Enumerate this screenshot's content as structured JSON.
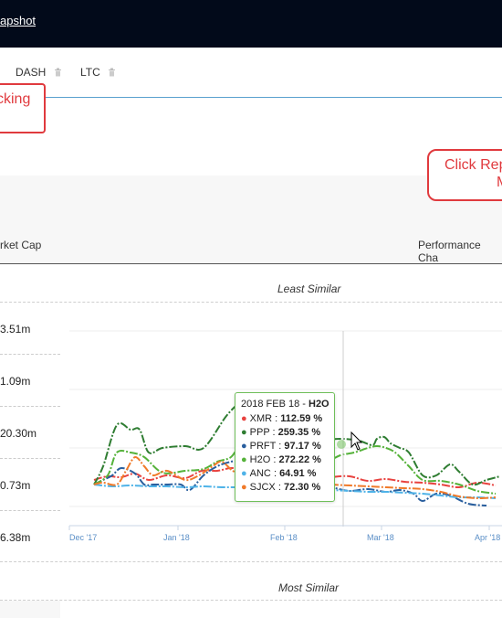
{
  "header": {
    "title": "apshot"
  },
  "tabs": [
    {
      "label": "DASH"
    },
    {
      "label": "LTC"
    }
  ],
  "callouts": {
    "left_text": "cking",
    "right_line1": "Click Rep",
    "right_line2": "M"
  },
  "table": {
    "col_market_cap": "rket Cap",
    "col_performance": "Performance Cha",
    "least_caption": "Least Similar",
    "most_caption": "Most Similar",
    "market_caps": [
      "3.51m",
      "1.09m",
      "20.30m",
      "0.73m",
      "6.38m"
    ]
  },
  "tooltip": {
    "date": "2018 FEB 18",
    "separator": " - ",
    "focus": "H2O",
    "rows": [
      {
        "name": "XMR",
        "value": "112.59 %",
        "color": "#e8423f"
      },
      {
        "name": "PPP",
        "value": "259.35 %",
        "color": "#2f7d32"
      },
      {
        "name": "PRFT",
        "value": "97.17 %",
        "color": "#2a5f9e"
      },
      {
        "name": "H2O",
        "value": "272.22 %",
        "color": "#55b23a"
      },
      {
        "name": "ANC",
        "value": "64.91 %",
        "color": "#4fb3e8"
      },
      {
        "name": "SJCX",
        "value": "72.30 %",
        "color": "#f07a2a"
      }
    ]
  },
  "chart_data": {
    "type": "line",
    "x": [
      "Dec '17",
      "Jan '18",
      "Feb '18",
      "Mar '18",
      "Apr '18"
    ],
    "series": [
      {
        "name": "XMR",
        "color": "#e8423f",
        "points": [
          [
            0,
            525
          ],
          [
            15,
            521
          ],
          [
            30,
            522
          ],
          [
            45,
            518
          ],
          [
            60,
            525
          ],
          [
            80,
            520
          ],
          [
            100,
            523
          ],
          [
            118,
            515
          ],
          [
            135,
            515
          ],
          [
            150,
            512
          ],
          [
            165,
            514
          ],
          [
            180,
            519
          ],
          [
            200,
            520
          ],
          [
            220,
            523
          ],
          [
            240,
            525
          ],
          [
            260,
            522
          ],
          [
            280,
            521
          ],
          [
            300,
            526
          ],
          [
            320,
            524
          ],
          [
            340,
            527
          ],
          [
            360,
            528
          ],
          [
            380,
            530
          ],
          [
            400,
            533
          ],
          [
            420,
            528
          ],
          [
            440,
            531
          ],
          [
            460,
            536
          ],
          [
            475,
            540
          ],
          [
            484,
            533
          ]
        ]
      },
      {
        "name": "PPP",
        "color": "#2f7d32",
        "points": [
          [
            0,
            530
          ],
          [
            10,
            510
          ],
          [
            25,
            465
          ],
          [
            40,
            470
          ],
          [
            50,
            470
          ],
          [
            60,
            495
          ],
          [
            75,
            490
          ],
          [
            100,
            488
          ],
          [
            120,
            490
          ],
          [
            145,
            455
          ],
          [
            160,
            440
          ],
          [
            170,
            432
          ],
          [
            178,
            440
          ],
          [
            190,
            490
          ],
          [
            210,
            490
          ],
          [
            230,
            487
          ],
          [
            250,
            482
          ],
          [
            270,
            480
          ],
          [
            290,
            482
          ],
          [
            305,
            487
          ],
          [
            310,
            480
          ],
          [
            318,
            478
          ],
          [
            325,
            485
          ],
          [
            335,
            490
          ],
          [
            345,
            495
          ],
          [
            360,
            520
          ],
          [
            375,
            520
          ],
          [
            390,
            508
          ],
          [
            400,
            516
          ],
          [
            415,
            530
          ],
          [
            430,
            525
          ],
          [
            445,
            521
          ],
          [
            460,
            530
          ],
          [
            474,
            528
          ],
          [
            484,
            520
          ]
        ]
      },
      {
        "name": "PRFT",
        "color": "#2a5f9e",
        "points": [
          [
            0,
            530
          ],
          [
            10,
            525
          ],
          [
            20,
            520
          ],
          [
            30,
            512
          ],
          [
            45,
            518
          ],
          [
            55,
            530
          ],
          [
            65,
            530
          ],
          [
            80,
            530
          ],
          [
            95,
            530
          ],
          [
            105,
            536
          ],
          [
            120,
            520
          ],
          [
            135,
            510
          ],
          [
            150,
            505
          ],
          [
            160,
            503
          ],
          [
            170,
            492
          ],
          [
            180,
            520
          ],
          [
            190,
            535
          ],
          [
            205,
            533
          ],
          [
            220,
            531
          ],
          [
            240,
            530
          ],
          [
            260,
            533
          ],
          [
            280,
            537
          ],
          [
            300,
            535
          ],
          [
            320,
            538
          ],
          [
            335,
            536
          ],
          [
            350,
            540
          ],
          [
            360,
            548
          ],
          [
            375,
            540
          ],
          [
            390,
            542
          ],
          [
            410,
            551
          ],
          [
            430,
            553
          ],
          [
            450,
            549
          ],
          [
            470,
            549
          ],
          [
            484,
            539
          ]
        ]
      },
      {
        "name": "H2O",
        "color": "#55b23a",
        "points": [
          [
            0,
            530
          ],
          [
            15,
            520
          ],
          [
            25,
            495
          ],
          [
            40,
            495
          ],
          [
            55,
            500
          ],
          [
            75,
            517
          ],
          [
            100,
            515
          ],
          [
            120,
            513
          ],
          [
            135,
            505
          ],
          [
            150,
            500
          ],
          [
            160,
            485
          ],
          [
            172,
            468
          ],
          [
            182,
            505
          ],
          [
            195,
            512
          ],
          [
            215,
            512
          ],
          [
            235,
            510
          ],
          [
            255,
            505
          ],
          [
            270,
            498
          ],
          [
            285,
            495
          ],
          [
            300,
            490
          ],
          [
            310,
            488
          ],
          [
            320,
            490
          ],
          [
            330,
            495
          ],
          [
            345,
            510
          ],
          [
            360,
            525
          ],
          [
            380,
            526
          ],
          [
            400,
            530
          ],
          [
            420,
            537
          ],
          [
            440,
            540
          ],
          [
            460,
            538
          ],
          [
            474,
            547
          ],
          [
            484,
            540
          ]
        ]
      },
      {
        "name": "ANC",
        "color": "#4fb3e8",
        "points": [
          [
            0,
            530
          ],
          [
            20,
            532
          ],
          [
            40,
            531
          ],
          [
            60,
            532
          ],
          [
            80,
            532
          ],
          [
            100,
            533
          ],
          [
            120,
            532
          ],
          [
            140,
            533
          ],
          [
            160,
            533
          ],
          [
            180,
            534
          ],
          [
            200,
            536
          ],
          [
            220,
            537
          ],
          [
            240,
            536
          ],
          [
            260,
            536
          ],
          [
            280,
            537
          ],
          [
            300,
            538
          ],
          [
            320,
            538
          ],
          [
            340,
            539
          ],
          [
            360,
            540
          ],
          [
            380,
            542
          ],
          [
            400,
            544
          ],
          [
            420,
            544
          ],
          [
            440,
            545
          ],
          [
            460,
            546
          ],
          [
            484,
            547
          ]
        ]
      },
      {
        "name": "SJCX",
        "color": "#f07a2a",
        "points": [
          [
            0,
            530
          ],
          [
            10,
            528
          ],
          [
            25,
            530
          ],
          [
            35,
            515
          ],
          [
            45,
            500
          ],
          [
            55,
            510
          ],
          [
            65,
            520
          ],
          [
            80,
            515
          ],
          [
            100,
            525
          ],
          [
            115,
            520
          ],
          [
            130,
            510
          ],
          [
            140,
            505
          ],
          [
            152,
            515
          ],
          [
            165,
            520
          ],
          [
            180,
            525
          ],
          [
            200,
            527
          ],
          [
            220,
            527
          ],
          [
            240,
            528
          ],
          [
            260,
            530
          ],
          [
            280,
            531
          ],
          [
            300,
            532
          ],
          [
            320,
            533
          ],
          [
            340,
            534
          ],
          [
            360,
            535
          ],
          [
            380,
            538
          ],
          [
            400,
            543
          ],
          [
            420,
            545
          ],
          [
            440,
            544
          ],
          [
            460,
            547
          ],
          [
            484,
            540
          ]
        ]
      }
    ]
  }
}
